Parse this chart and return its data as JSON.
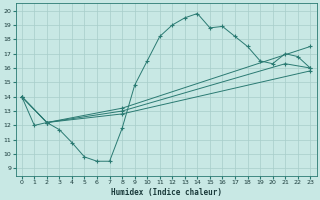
{
  "xlabel": "Humidex (Indice chaleur)",
  "xlim": [
    -0.5,
    23.5
  ],
  "ylim": [
    8.5,
    20.5
  ],
  "yticks": [
    9,
    10,
    11,
    12,
    13,
    14,
    15,
    16,
    17,
    18,
    19,
    20
  ],
  "xticks": [
    0,
    1,
    2,
    3,
    4,
    5,
    6,
    7,
    8,
    9,
    10,
    11,
    12,
    13,
    14,
    15,
    16,
    17,
    18,
    19,
    20,
    21,
    22,
    23
  ],
  "bg_color": "#c8e8e4",
  "grid_color": "#a8ceca",
  "line_color": "#2a7a72",
  "main_line": {
    "x": [
      0,
      1,
      2,
      3,
      4,
      5,
      6,
      7,
      8,
      9,
      10,
      11,
      12,
      13,
      14,
      15,
      16,
      17,
      18,
      19,
      20,
      21,
      22,
      23
    ],
    "y": [
      14,
      12,
      12.2,
      11.7,
      10.8,
      9.8,
      9.5,
      9.5,
      11.8,
      14.8,
      16.5,
      18.2,
      19.0,
      19.5,
      19.8,
      18.8,
      18.9,
      18.2,
      17.5,
      16.5,
      16.3,
      17.0,
      16.8,
      16.0
    ]
  },
  "straight_lines": [
    {
      "x": [
        0,
        2,
        8,
        23
      ],
      "y": [
        14,
        12.2,
        13.2,
        17.5
      ]
    },
    {
      "x": [
        0,
        2,
        8,
        21,
        23
      ],
      "y": [
        14,
        12.2,
        13.0,
        16.3,
        16.0
      ]
    },
    {
      "x": [
        0,
        2,
        8,
        23
      ],
      "y": [
        14,
        12.2,
        12.8,
        15.8
      ]
    }
  ]
}
